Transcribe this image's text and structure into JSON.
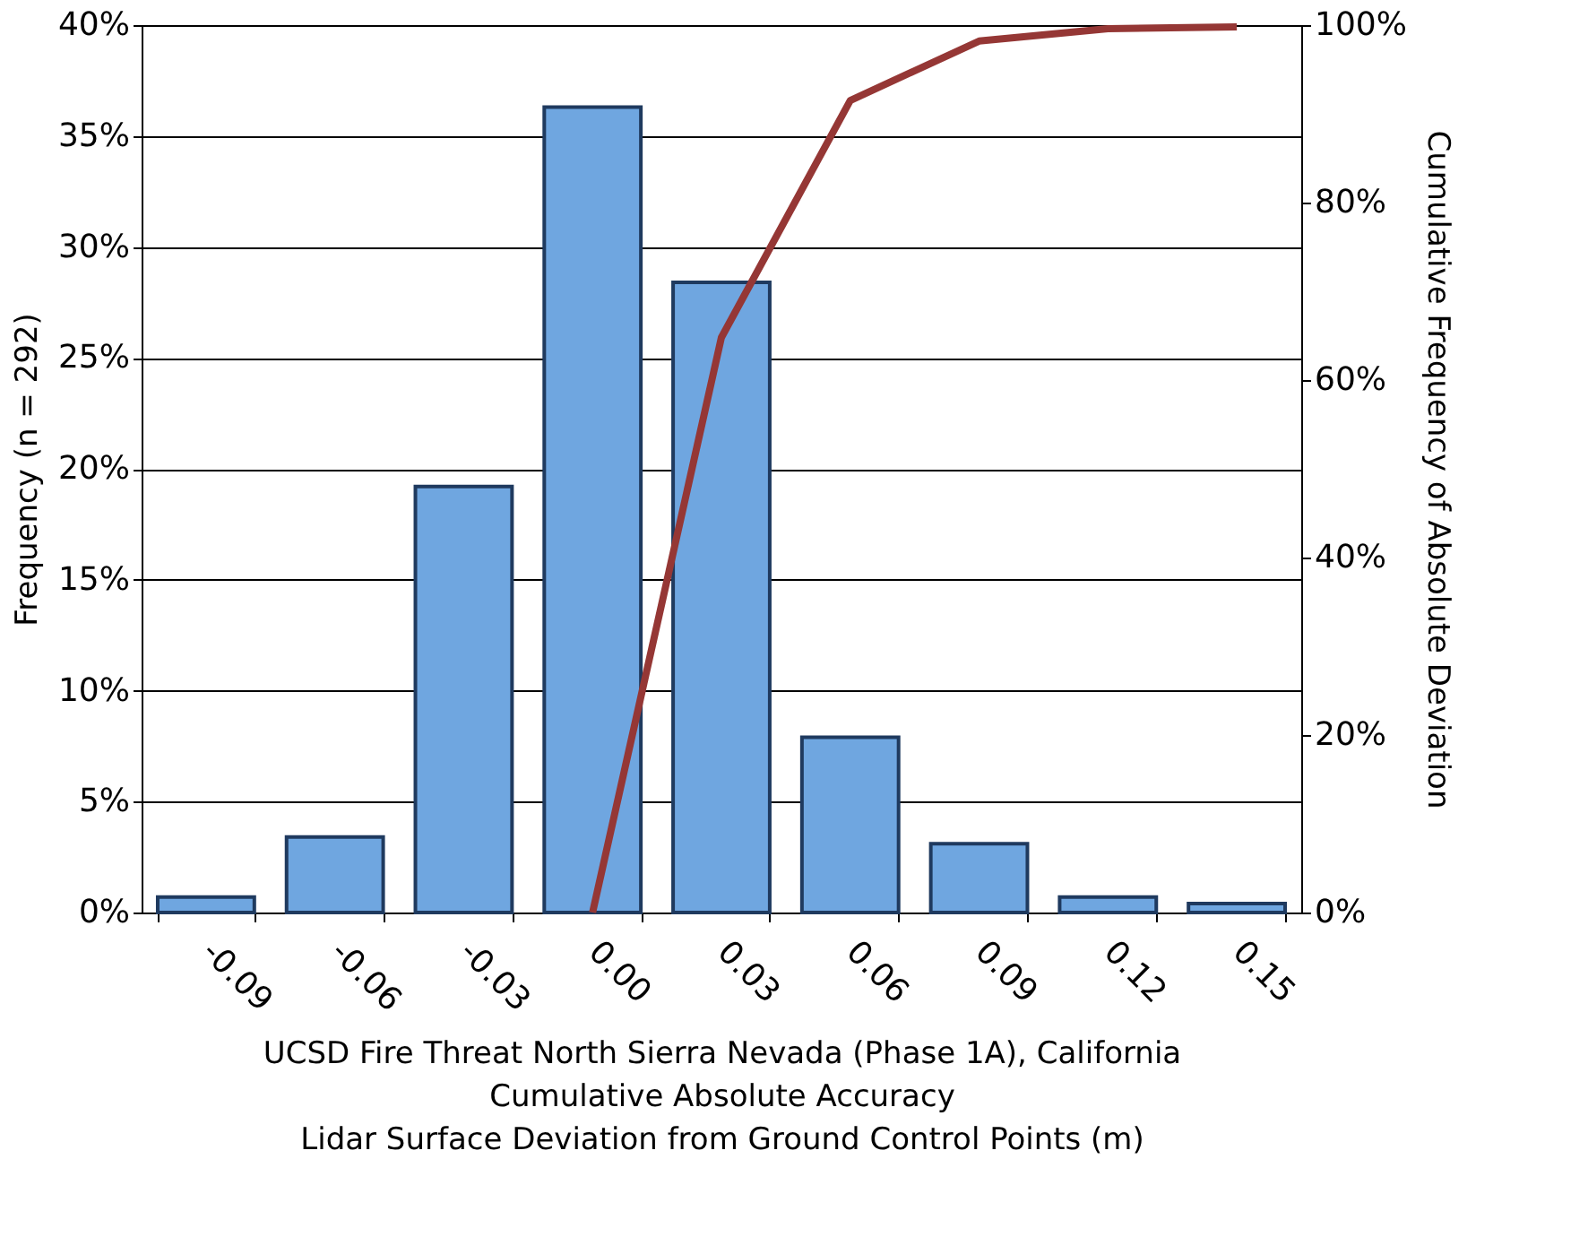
{
  "chart_data": {
    "type": "bar",
    "categories": [
      "-0.09",
      "-0.06",
      "-0.03",
      "0.00",
      "0.03",
      "0.06",
      "0.09",
      "0.12",
      "0.15"
    ],
    "xlabel": "UCSD Fire Threat North Sierra Nevada (Phase 1A), California\nCumulative Absolute Accuracy\nLidar Surface Deviation from Ground Control Points (m)",
    "ylabel": "Frequency (n = 292)",
    "y2label": "Cumulative Frequency of Absolute Deviation",
    "series": [
      {
        "color": "#6fa6e0",
        "values": [
          0.7,
          3.4,
          19.2,
          36.3,
          28.4,
          7.9,
          3.1,
          0.7,
          0.4
        ]
      },
      {
        "type": "line",
        "axis": "y2",
        "color": "#953735",
        "x": [
          "0.00",
          "0.03",
          "0.06",
          "0.09",
          "0.12",
          "0.15"
        ],
        "values": [
          0,
          64.8,
          91.5,
          98.2,
          99.6,
          99.8
        ]
      }
    ],
    "ylim": [
      0,
      40
    ],
    "yticks": [
      {
        "value": 0,
        "label": "0%"
      },
      {
        "value": 5,
        "label": "5%"
      },
      {
        "value": 10,
        "label": "10%"
      },
      {
        "value": 15,
        "label": "15%"
      },
      {
        "value": 20,
        "label": "20%"
      },
      {
        "value": 25,
        "label": "25%"
      },
      {
        "value": 30,
        "label": "30%"
      },
      {
        "value": 35,
        "label": "35%"
      },
      {
        "value": 40,
        "label": "40%"
      }
    ],
    "y2lim": [
      0,
      100
    ],
    "y2ticks": [
      {
        "value": 0,
        "label": "0%"
      },
      {
        "value": 20,
        "label": "20%"
      },
      {
        "value": 40,
        "label": "40%"
      },
      {
        "value": 60,
        "label": "60%"
      },
      {
        "value": 80,
        "label": "80%"
      },
      {
        "value": 100,
        "label": "100%"
      }
    ],
    "grid": "y",
    "marker": "none",
    "line_style": "solid"
  }
}
